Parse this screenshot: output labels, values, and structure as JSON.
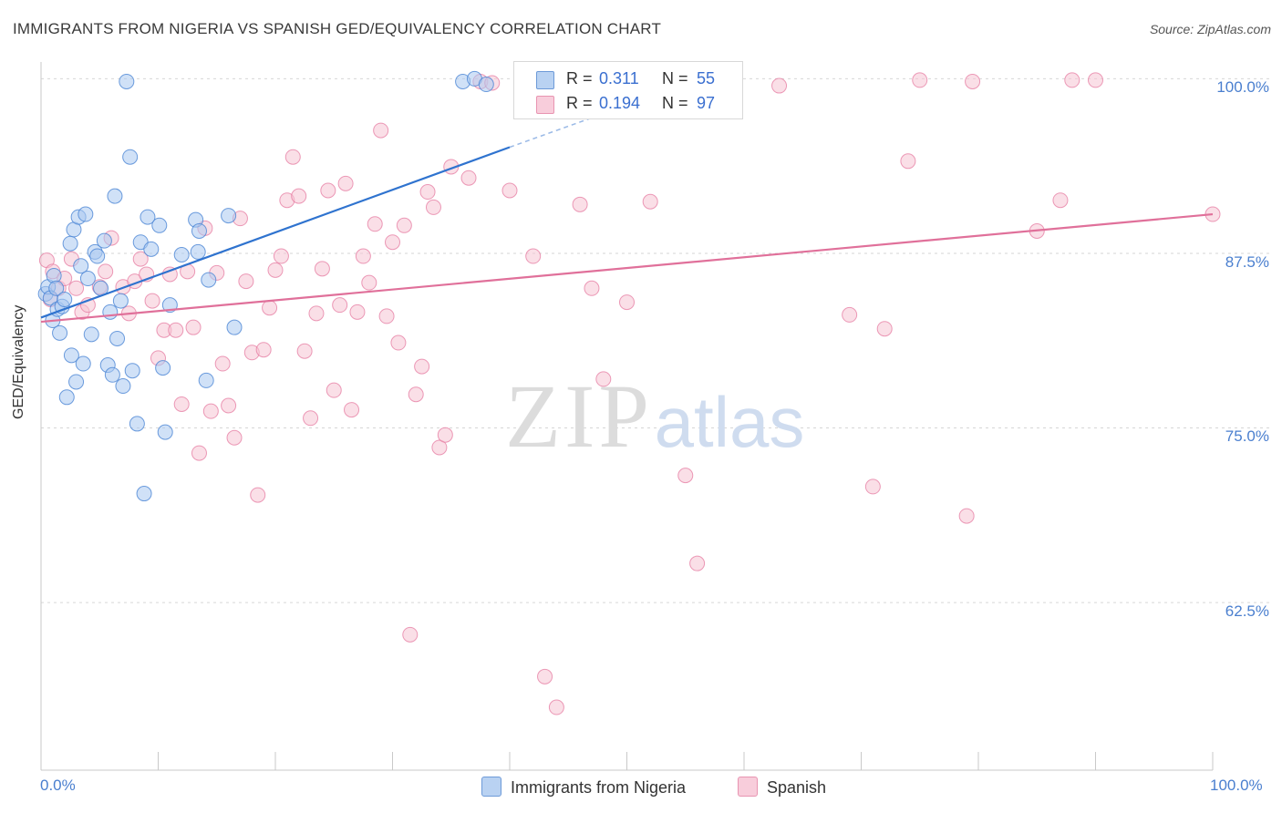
{
  "header": {
    "title": "IMMIGRANTS FROM NIGERIA VS SPANISH GED/EQUIVALENCY CORRELATION CHART",
    "source": "Source: ZipAtlas.com"
  },
  "legend": {
    "r_label": "R =",
    "n_label": "N =",
    "series": [
      {
        "r": "0.311",
        "n": "55"
      },
      {
        "r": "0.194",
        "n": "97"
      }
    ]
  },
  "watermark": {
    "zip": "ZIP",
    "atlas": "atlas"
  },
  "chart_data": {
    "type": "scatter",
    "title": "IMMIGRANTS FROM NIGERIA VS SPANISH GED/EQUIVALENCY CORRELATION CHART",
    "ylabel": "GED/Equivalency",
    "x_tick_labels": [
      "0.0%",
      "100.0%"
    ],
    "y_tick_labels": [
      "100.0%",
      "87.5%",
      "75.0%",
      "62.5%"
    ],
    "y_ticks": [
      100.0,
      87.5,
      75.0,
      62.5
    ],
    "xlim": [
      0,
      100
    ],
    "ylim": [
      50.5,
      101.2
    ],
    "grid": "horizontal dashed",
    "legend_position": "top-center",
    "colors": {
      "Immigrants from Nigeria": "#4a84d4",
      "Spanish": "#e57aa0",
      "nigeria_fill": "#a9c8f0",
      "spanish_fill": "#f6c4d4"
    },
    "series": [
      {
        "name": "Immigrants from Nigeria",
        "r": 0.311,
        "n": 55,
        "trend": {
          "x0": 0.0,
          "y0": 82.9,
          "x1": 40.0,
          "y1": 95.1,
          "dash_to_x": 50.0,
          "dash_to_y": 98.1
        },
        "points": [
          [
            0.4,
            84.6
          ],
          [
            0.6,
            85.1
          ],
          [
            0.8,
            84.3
          ],
          [
            1.0,
            82.7
          ],
          [
            1.1,
            85.9
          ],
          [
            1.3,
            85.0
          ],
          [
            1.4,
            83.5
          ],
          [
            1.6,
            81.8
          ],
          [
            1.8,
            83.7
          ],
          [
            2.0,
            84.2
          ],
          [
            2.2,
            77.2
          ],
          [
            2.5,
            88.2
          ],
          [
            2.6,
            80.2
          ],
          [
            2.8,
            89.2
          ],
          [
            3.0,
            78.3
          ],
          [
            3.2,
            90.1
          ],
          [
            3.4,
            86.6
          ],
          [
            3.6,
            79.6
          ],
          [
            3.8,
            90.3
          ],
          [
            4.0,
            85.7
          ],
          [
            4.3,
            81.7
          ],
          [
            4.6,
            87.6
          ],
          [
            4.8,
            87.3
          ],
          [
            5.1,
            85.0
          ],
          [
            5.4,
            88.4
          ],
          [
            5.7,
            79.5
          ],
          [
            5.9,
            83.3
          ],
          [
            6.1,
            78.8
          ],
          [
            6.3,
            91.6
          ],
          [
            6.5,
            81.4
          ],
          [
            6.8,
            84.1
          ],
          [
            7.0,
            78.0
          ],
          [
            7.3,
            99.8
          ],
          [
            7.6,
            94.4
          ],
          [
            7.8,
            79.1
          ],
          [
            8.2,
            75.3
          ],
          [
            8.5,
            88.3
          ],
          [
            8.8,
            70.3
          ],
          [
            9.1,
            90.1
          ],
          [
            9.4,
            87.8
          ],
          [
            10.1,
            89.5
          ],
          [
            10.4,
            79.3
          ],
          [
            10.6,
            74.7
          ],
          [
            11.0,
            83.8
          ],
          [
            12.0,
            87.4
          ],
          [
            13.2,
            89.9
          ],
          [
            13.5,
            89.1
          ],
          [
            14.1,
            78.4
          ],
          [
            13.4,
            87.6
          ],
          [
            14.3,
            85.6
          ],
          [
            16.0,
            90.2
          ],
          [
            16.5,
            82.2
          ],
          [
            36.0,
            99.8
          ],
          [
            37.0,
            100.0
          ],
          [
            38.0,
            99.6
          ]
        ]
      },
      {
        "name": "Spanish",
        "r": 0.194,
        "n": 97,
        "trend": {
          "x0": 0.0,
          "y0": 82.6,
          "x1": 100.0,
          "y1": 90.3
        },
        "points": [
          [
            0.5,
            87.0
          ],
          [
            1.0,
            86.2
          ],
          [
            1.5,
            85.0
          ],
          [
            2.0,
            85.7
          ],
          [
            2.6,
            87.1
          ],
          [
            3.0,
            85.0
          ],
          [
            3.5,
            83.3
          ],
          [
            4.0,
            83.8
          ],
          [
            5.0,
            85.1
          ],
          [
            5.5,
            86.2
          ],
          [
            6.0,
            88.6
          ],
          [
            7.0,
            85.1
          ],
          [
            7.5,
            83.2
          ],
          [
            8.0,
            85.5
          ],
          [
            8.5,
            87.1
          ],
          [
            9.0,
            86.0
          ],
          [
            9.5,
            84.1
          ],
          [
            10.0,
            80.0
          ],
          [
            10.5,
            82.0
          ],
          [
            11.0,
            86.0
          ],
          [
            11.5,
            82.0
          ],
          [
            12.0,
            76.7
          ],
          [
            12.5,
            86.2
          ],
          [
            13.0,
            82.2
          ],
          [
            13.5,
            73.2
          ],
          [
            14.0,
            89.3
          ],
          [
            14.5,
            76.2
          ],
          [
            15.0,
            86.1
          ],
          [
            15.5,
            79.6
          ],
          [
            16.0,
            76.6
          ],
          [
            16.5,
            74.3
          ],
          [
            17.0,
            90.0
          ],
          [
            17.5,
            85.5
          ],
          [
            18.0,
            80.4
          ],
          [
            18.5,
            70.2
          ],
          [
            19.0,
            80.6
          ],
          [
            19.5,
            83.6
          ],
          [
            20.0,
            86.3
          ],
          [
            20.5,
            87.3
          ],
          [
            21.0,
            91.3
          ],
          [
            21.5,
            94.4
          ],
          [
            22.0,
            91.6
          ],
          [
            22.5,
            80.5
          ],
          [
            23.0,
            75.7
          ],
          [
            23.5,
            83.2
          ],
          [
            24.0,
            86.4
          ],
          [
            24.5,
            92.0
          ],
          [
            25.0,
            77.7
          ],
          [
            25.5,
            83.8
          ],
          [
            26.0,
            92.5
          ],
          [
            26.5,
            76.3
          ],
          [
            27.0,
            83.3
          ],
          [
            27.5,
            87.3
          ],
          [
            28.0,
            85.4
          ],
          [
            28.5,
            89.6
          ],
          [
            29.0,
            96.3
          ],
          [
            29.5,
            83.0
          ],
          [
            30.0,
            88.3
          ],
          [
            30.5,
            81.1
          ],
          [
            31.0,
            89.5
          ],
          [
            31.5,
            60.2
          ],
          [
            32.0,
            77.4
          ],
          [
            32.5,
            79.4
          ],
          [
            33.0,
            91.9
          ],
          [
            33.5,
            90.8
          ],
          [
            34.0,
            73.6
          ],
          [
            34.5,
            74.5
          ],
          [
            35.0,
            93.7
          ],
          [
            36.5,
            92.9
          ],
          [
            37.5,
            99.8
          ],
          [
            38.5,
            99.7
          ],
          [
            40.0,
            92.0
          ],
          [
            42.0,
            87.3
          ],
          [
            43.0,
            57.2
          ],
          [
            44.0,
            55.0
          ],
          [
            46.0,
            91.0
          ],
          [
            47.0,
            85.0
          ],
          [
            48.0,
            78.5
          ],
          [
            50.0,
            84.0
          ],
          [
            52.0,
            91.2
          ],
          [
            55.0,
            71.6
          ],
          [
            56.0,
            65.3
          ],
          [
            58.0,
            100.0
          ],
          [
            63.0,
            99.5
          ],
          [
            69.0,
            83.1
          ],
          [
            71.0,
            70.8
          ],
          [
            72.0,
            82.1
          ],
          [
            74.0,
            94.1
          ],
          [
            75.0,
            99.9
          ],
          [
            79.0,
            68.7
          ],
          [
            79.5,
            99.8
          ],
          [
            85.0,
            89.1
          ],
          [
            87.0,
            91.3
          ],
          [
            88.0,
            99.9
          ],
          [
            90.0,
            99.9
          ],
          [
            100.0,
            90.3
          ],
          [
            0.8,
            84.2
          ]
        ]
      }
    ]
  },
  "bottom_legend": {
    "nigeria": "Immigrants from Nigeria",
    "spanish": "Spanish"
  }
}
